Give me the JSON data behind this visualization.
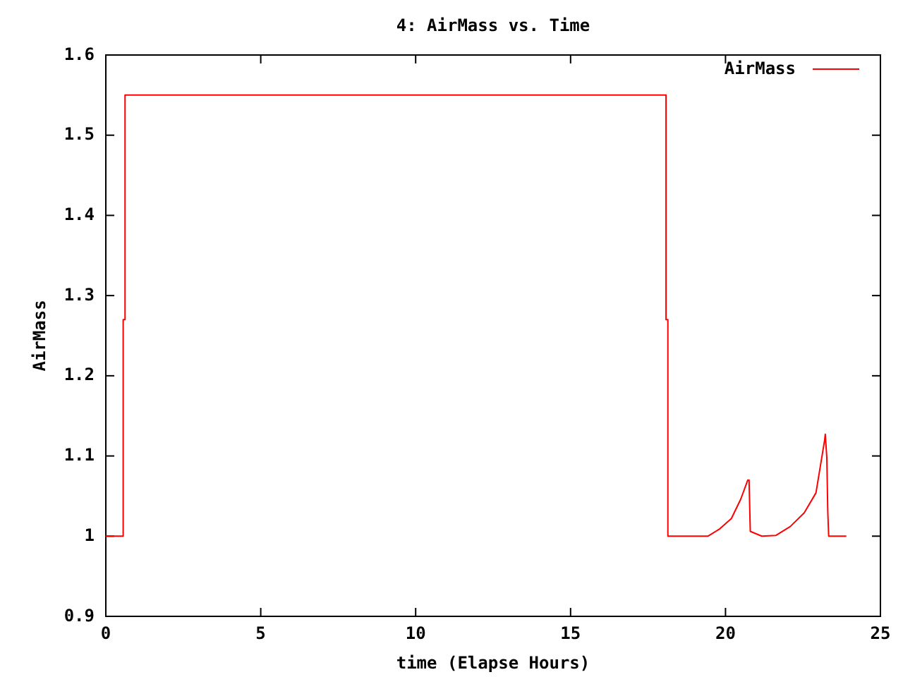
{
  "chart_data": {
    "type": "line",
    "title": "4: AirMass vs. Time",
    "xlabel": "time (Elapse Hours)",
    "ylabel": "AirMass",
    "xlim": [
      0,
      25
    ],
    "xticks": [
      0,
      5,
      10,
      15,
      20,
      25
    ],
    "ylim": [
      0.9,
      1.6
    ],
    "yticks": [
      0.9,
      1,
      1.1,
      1.2,
      1.3,
      1.4,
      1.5,
      1.6
    ],
    "grid": false,
    "legend": "top right",
    "marker": "none",
    "line_style": "solid",
    "series": [
      {
        "name": "AirMass",
        "color": "#ff0000",
        "x": [
          0,
          0.56,
          0.56,
          0.62,
          0.62,
          18.08,
          18.08,
          18.14,
          18.14,
          19.43,
          19.81,
          20.19,
          20.49,
          20.72,
          20.76,
          20.8,
          21.17,
          21.63,
          22.09,
          22.54,
          22.92,
          23.2,
          23.22,
          23.27,
          23.3,
          23.33,
          23.9
        ],
        "values": [
          1,
          1,
          1.27,
          1.27,
          1.55,
          1.55,
          1.27,
          1.27,
          1,
          1,
          1.009,
          1.022,
          1.046,
          1.07,
          1.07,
          1.006,
          1,
          1.001,
          1.012,
          1.029,
          1.054,
          1.12,
          1.127,
          1.098,
          1.032,
          1,
          1
        ]
      }
    ]
  }
}
